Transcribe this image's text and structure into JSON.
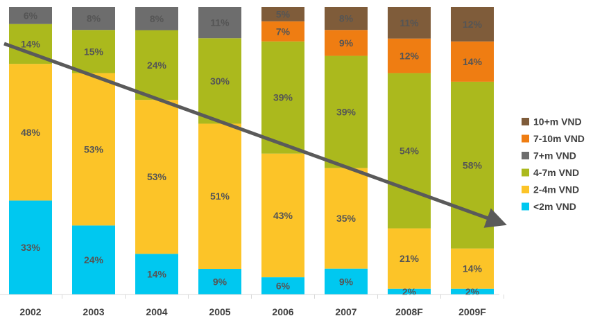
{
  "chart_data": {
    "type": "bar",
    "stacked": true,
    "normalized": true,
    "categories": [
      "2002",
      "2003",
      "2004",
      "2005",
      "2006",
      "2007",
      "2008F",
      "2009F"
    ],
    "series": [
      {
        "name": "<2m VND",
        "color": "#00c8f0",
        "values": [
          33,
          24,
          14,
          9,
          6,
          9,
          2,
          2
        ]
      },
      {
        "name": "2-4m VND",
        "color": "#fcc428",
        "values": [
          48,
          53,
          53,
          51,
          43,
          35,
          21,
          14
        ]
      },
      {
        "name": "4-7m VND",
        "color": "#abb91d",
        "values": [
          14,
          15,
          24,
          30,
          39,
          39,
          54,
          58
        ]
      },
      {
        "name": "7+m VND",
        "color": "#6d6d6d",
        "values": [
          6,
          8,
          8,
          11,
          null,
          null,
          null,
          null
        ]
      },
      {
        "name": "7-10m VND",
        "color": "#ef7d12",
        "values": [
          null,
          null,
          null,
          null,
          7,
          9,
          12,
          14
        ]
      },
      {
        "name": "10+m VND",
        "color": "#7f5c3a",
        "values": [
          null,
          null,
          null,
          null,
          5,
          8,
          11,
          12
        ]
      }
    ],
    "value_suffix": "%",
    "legend_order": [
      "10+m VND",
      "7-10m VND",
      "7+m VND",
      "4-7m VND",
      "2-4m VND",
      "<2m VND"
    ],
    "legend_position": "right",
    "annotation": {
      "type": "trend-arrow",
      "direction": "down",
      "color": "#5a5a5a"
    },
    "title": "",
    "xlabel": "",
    "ylabel": ""
  }
}
